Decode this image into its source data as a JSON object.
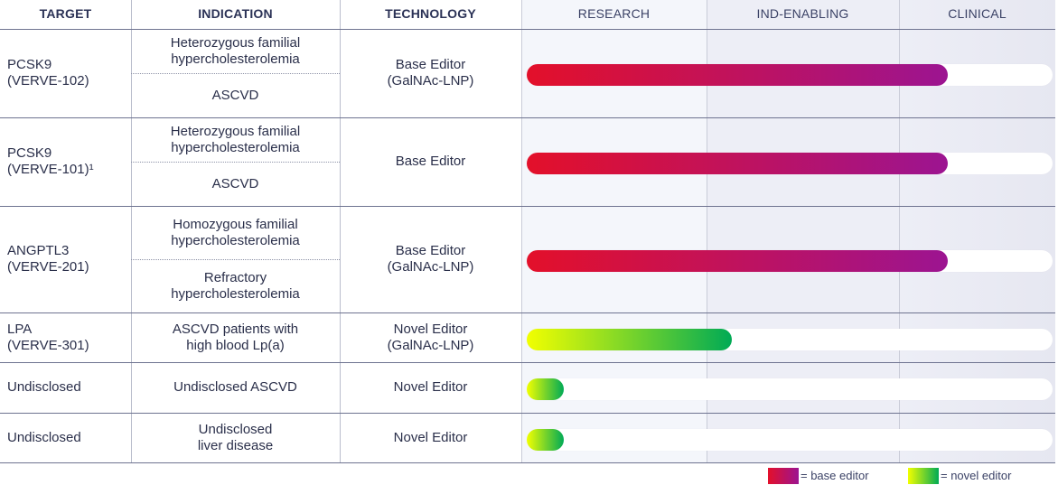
{
  "header": {
    "target": "TARGET",
    "indication": "INDICATION",
    "technology": "TECHNOLOGY",
    "stages": [
      "RESEARCH",
      "IND-ENABLING",
      "CLINICAL"
    ]
  },
  "colors": {
    "base_editor": [
      "#e3102a",
      "#9c1491"
    ],
    "novel_editor": [
      "#f2ff00",
      "#00aa55"
    ],
    "stage_backgrounds": [
      "#f4f6fb",
      "#edeef6",
      "#e6e7f1"
    ]
  },
  "chart_data": {
    "type": "bar",
    "stages": [
      "RESEARCH",
      "IND-ENABLING",
      "CLINICAL"
    ],
    "programs": [
      {
        "target": "PCSK9\n(VERVE-102)",
        "indications": [
          "Heterozygous familial\nhypercholesterolemia",
          "ASCVD"
        ],
        "technology": "Base Editor\n(GalNAc-LNP)",
        "editor": "base",
        "progress": 0.8
      },
      {
        "target": "PCSK9\n(VERVE-101)¹",
        "indications": [
          "Heterozygous familial\nhypercholesterolemia",
          "ASCVD"
        ],
        "technology": "Base Editor",
        "editor": "base",
        "progress": 0.8
      },
      {
        "target": "ANGPTL3\n(VERVE-201)",
        "indications": [
          "Homozygous familial\nhypercholesterolemia",
          "Refractory\nhypercholesterolemia"
        ],
        "technology": "Base Editor\n(GalNAc-LNP)",
        "editor": "base",
        "progress": 0.8
      },
      {
        "target": "LPA\n(VERVE-301)",
        "indications": [
          "ASCVD patients with\nhigh blood Lp(a)"
        ],
        "technology": "Novel Editor\n(GalNAc-LNP)",
        "editor": "novel",
        "progress": 0.39
      },
      {
        "target": "Undisclosed",
        "indications": [
          "Undisclosed ASCVD"
        ],
        "technology": "Novel Editor",
        "editor": "novel",
        "progress": 0.07
      },
      {
        "target": "Undisclosed",
        "indications": [
          "Undisclosed\nliver disease"
        ],
        "technology": "Novel Editor",
        "editor": "novel",
        "progress": 0.07
      }
    ],
    "legend": [
      {
        "editor": "base",
        "label": "= base editor"
      },
      {
        "editor": "novel",
        "label": "= novel editor"
      }
    ]
  }
}
